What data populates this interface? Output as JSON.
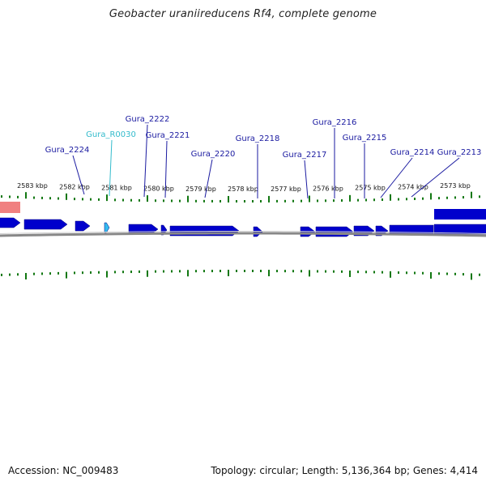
{
  "title": "Geobacter uraniireducens Rf4, complete genome",
  "footer": {
    "accession": "Accession: NC_009483",
    "summary": "Topology: circular; Length: 5,136,364 bp; Genes: 4,414"
  },
  "colors": {
    "gene": "#0000cc",
    "gene_light": "#3355ff",
    "rna_gene": "#33bbee",
    "rna_label": "#33bbcc",
    "label": "#1a1aa0",
    "tick": "#117711",
    "backbone": "#888888",
    "feature_pink": "#f08080"
  },
  "scale_labels": [
    "2583 kbp",
    "2582 kbp",
    "2581 kbp",
    "2580 kbp",
    "2579 kbp",
    "2578 kbp",
    "2577 kbp",
    "2576 kbp",
    "2575 kbp",
    "2574 kbp",
    "2573 kbp"
  ],
  "gene_labels": [
    {
      "name": "Gura_2224",
      "type": "protein"
    },
    {
      "name": "Gura_R0030",
      "type": "rna"
    },
    {
      "name": "Gura_2222",
      "type": "protein"
    },
    {
      "name": "Gura_2221",
      "type": "protein"
    },
    {
      "name": "Gura_2220",
      "type": "protein"
    },
    {
      "name": "Gura_2218",
      "type": "protein"
    },
    {
      "name": "Gura_2217",
      "type": "protein"
    },
    {
      "name": "Gura_2216",
      "type": "protein"
    },
    {
      "name": "Gura_2215",
      "type": "protein"
    },
    {
      "name": "Gura_2214",
      "type": "protein"
    },
    {
      "name": "Gura_2213",
      "type": "protein"
    }
  ]
}
